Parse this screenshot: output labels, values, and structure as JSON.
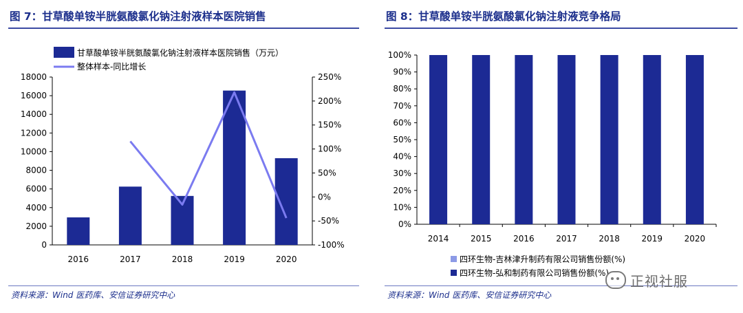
{
  "figures": [
    {
      "title": "图 7：甘草酸单铵半胱氨酸氯化钠注射液样本医院销售",
      "source": "资料来源：Wind 医药库、安信证券研究中心"
    },
    {
      "title": "图 8：甘草酸单铵半胱氨酸氯化钠注射液竞争格局",
      "source": "资料来源：Wind 医药库、安信证券研究中心"
    }
  ],
  "watermark": {
    "text": "正视社服",
    "icon": "wechat-icon"
  },
  "colors": {
    "navy": "#1c2a94",
    "line": "#7b7bf0",
    "light_bar": "#8c9ae6",
    "title": "#1c2f8c"
  },
  "chart_data": [
    {
      "type": "bar+line",
      "title": "",
      "categories": [
        "2016",
        "2017",
        "2018",
        "2019",
        "2020"
      ],
      "series": [
        {
          "name": "甘草酸单铵半胱氨酸氯化钠注射液样本医院销售（万元）",
          "type": "bar",
          "axis": "left",
          "values": [
            2950,
            6250,
            5250,
            16550,
            9300
          ]
        },
        {
          "name": "整体样本-同比增长",
          "type": "line",
          "axis": "right",
          "values": [
            null,
            1.16,
            -0.16,
            2.18,
            -0.44
          ]
        }
      ],
      "y_left": {
        "range": [
          0,
          18000
        ],
        "ticks": [
          "0",
          "2000",
          "4000",
          "6000",
          "8000",
          "10000",
          "12000",
          "14000",
          "16000",
          "18000"
        ]
      },
      "y_right": {
        "range": [
          -1.0,
          2.5
        ],
        "ticks": [
          "-100%",
          "-50%",
          "0%",
          "50%",
          "100%",
          "150%",
          "200%",
          "250%"
        ]
      },
      "legend": "top-left",
      "grid": false
    },
    {
      "type": "stacked-bar",
      "title": "",
      "categories": [
        "2014",
        "2015",
        "2016",
        "2017",
        "2018",
        "2019",
        "2020"
      ],
      "series": [
        {
          "name": "四环生物-吉林津升制药有限公司销售份额(%)",
          "values": [
            0,
            0,
            0,
            0,
            0,
            0,
            0
          ]
        },
        {
          "name": "四环生物-弘和制药有限公司销售份额(%)",
          "values": [
            100,
            100,
            100,
            100,
            100,
            100,
            100
          ]
        }
      ],
      "y": {
        "range": [
          0,
          100
        ],
        "ticks": [
          "0%",
          "10%",
          "20%",
          "30%",
          "40%",
          "50%",
          "60%",
          "70%",
          "80%",
          "90%",
          "100%"
        ]
      },
      "legend": "bottom",
      "grid": false
    }
  ]
}
